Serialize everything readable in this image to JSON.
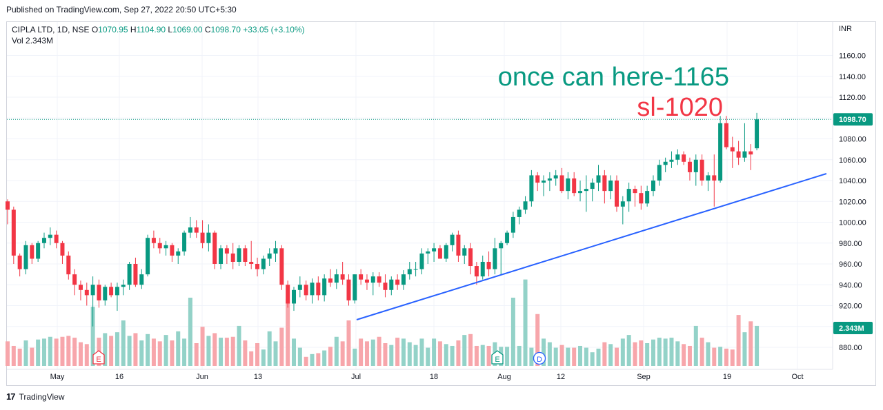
{
  "header": {
    "published": "Published on TradingView.com, Sep 27, 2022 20:50 UTC+5:30"
  },
  "legend": {
    "symbol": "CIPLA LTD, 1D, NSE",
    "open_label": "O",
    "open": "1070.95",
    "high_label": "H",
    "high": "1104.90",
    "low_label": "L",
    "low": "1069.00",
    "close_label": "C",
    "close": "1098.70",
    "change": "+33.05 (+3.10%)",
    "vol_label": "Vol",
    "vol_value": "2.343M"
  },
  "footer": {
    "brand": "TradingView"
  },
  "colors": {
    "up": "#089981",
    "down": "#f23645",
    "vol_up": "#93d2c8",
    "vol_down": "#f7a6ab",
    "trendline": "#2962ff",
    "annotation_green": "#089981",
    "annotation_red": "#f23645"
  },
  "chart_data": {
    "type": "candlestick",
    "currency": "INR",
    "ylim": [
      870,
      1175
    ],
    "y_ticks": [
      "880.00",
      "900.00",
      "920.00",
      "940.00",
      "960.00",
      "980.00",
      "1000.00",
      "1020.00",
      "1040.00",
      "1060.00",
      "1080.00",
      "1100.00",
      "1120.00",
      "1140.00",
      "1160.00"
    ],
    "x_ticks": [
      "May",
      "16",
      "Jun",
      "13",
      "Jul",
      "18",
      "Aug",
      "12",
      "Sep",
      "19",
      "Oct"
    ],
    "last_price_label": "1098.70",
    "last_volume_label": "2.343M",
    "annotations": [
      "once can here-1165",
      "sl-1020"
    ],
    "event_markers": [
      "E",
      "E",
      "D"
    ],
    "candles": [
      [
        1020,
        1022,
        998,
        1012
      ],
      [
        1012,
        1015,
        960,
        968
      ],
      [
        968,
        970,
        948,
        955
      ],
      [
        955,
        982,
        950,
        978
      ],
      [
        978,
        980,
        960,
        965
      ],
      [
        965,
        982,
        962,
        980
      ],
      [
        980,
        990,
        975,
        985
      ],
      [
        985,
        995,
        978,
        988
      ],
      [
        988,
        992,
        975,
        980
      ],
      [
        980,
        982,
        960,
        968
      ],
      [
        968,
        972,
        945,
        950
      ],
      [
        950,
        955,
        930,
        940
      ],
      [
        940,
        944,
        925,
        935
      ],
      [
        935,
        942,
        920,
        930
      ],
      [
        930,
        948,
        900,
        940
      ],
      [
        940,
        945,
        918,
        925
      ],
      [
        925,
        940,
        920,
        938
      ],
      [
        938,
        942,
        928,
        930
      ],
      [
        930,
        942,
        915,
        938
      ],
      [
        938,
        945,
        930,
        940
      ],
      [
        940,
        962,
        935,
        960
      ],
      [
        960,
        966,
        938,
        940
      ],
      [
        940,
        955,
        936,
        950
      ],
      [
        950,
        988,
        948,
        985
      ],
      [
        985,
        992,
        975,
        980
      ],
      [
        980,
        985,
        970,
        975
      ],
      [
        975,
        982,
        968,
        978
      ],
      [
        978,
        980,
        962,
        968
      ],
      [
        968,
        975,
        960,
        972
      ],
      [
        972,
        992,
        968,
        990
      ],
      [
        990,
        1005,
        985,
        995
      ],
      [
        995,
        1002,
        985,
        990
      ],
      [
        990,
        1002,
        975,
        980
      ],
      [
        980,
        998,
        972,
        990
      ],
      [
        990,
        992,
        955,
        960
      ],
      [
        960,
        978,
        955,
        975
      ],
      [
        975,
        978,
        960,
        970
      ],
      [
        970,
        980,
        955,
        962
      ],
      [
        962,
        978,
        958,
        975
      ],
      [
        975,
        978,
        958,
        962
      ],
      [
        962,
        982,
        955,
        960
      ],
      [
        960,
        966,
        948,
        955
      ],
      [
        955,
        968,
        950,
        965
      ],
      [
        965,
        975,
        958,
        970
      ],
      [
        970,
        982,
        962,
        975
      ],
      [
        975,
        978,
        935,
        940
      ],
      [
        940,
        944,
        918,
        922
      ],
      [
        922,
        938,
        915,
        935
      ],
      [
        935,
        948,
        928,
        940
      ],
      [
        940,
        944,
        925,
        930
      ],
      [
        930,
        946,
        922,
        942
      ],
      [
        942,
        948,
        925,
        930
      ],
      [
        930,
        950,
        924,
        946
      ],
      [
        946,
        955,
        938,
        942
      ],
      [
        942,
        955,
        936,
        950
      ],
      [
        950,
        962,
        940,
        945
      ],
      [
        945,
        950,
        920,
        925
      ],
      [
        925,
        950,
        922,
        950
      ],
      [
        950,
        955,
        940,
        945
      ],
      [
        945,
        950,
        935,
        942
      ],
      [
        942,
        952,
        930,
        948
      ],
      [
        948,
        952,
        938,
        942
      ],
      [
        942,
        950,
        928,
        935
      ],
      [
        935,
        948,
        930,
        945
      ],
      [
        945,
        950,
        935,
        940
      ],
      [
        940,
        954,
        935,
        950
      ],
      [
        950,
        962,
        945,
        955
      ],
      [
        955,
        962,
        948,
        955
      ],
      [
        955,
        975,
        950,
        970
      ],
      [
        970,
        975,
        960,
        972
      ],
      [
        972,
        980,
        962,
        975
      ],
      [
        975,
        978,
        965,
        965
      ],
      [
        965,
        980,
        962,
        978
      ],
      [
        978,
        990,
        972,
        988
      ],
      [
        988,
        992,
        962,
        968
      ],
      [
        968,
        978,
        960,
        975
      ],
      [
        975,
        980,
        950,
        958
      ],
      [
        958,
        962,
        940,
        948
      ],
      [
        948,
        968,
        945,
        962
      ],
      [
        962,
        972,
        948,
        955
      ],
      [
        955,
        985,
        950,
        975
      ],
      [
        975,
        982,
        950,
        980
      ],
      [
        980,
        992,
        978,
        990
      ],
      [
        990,
        1010,
        985,
        1005
      ],
      [
        1005,
        1015,
        998,
        1012
      ],
      [
        1012,
        1025,
        1008,
        1020
      ],
      [
        1020,
        1050,
        1015,
        1045
      ],
      [
        1045,
        1048,
        1030,
        1038
      ],
      [
        1038,
        1045,
        1025,
        1040
      ],
      [
        1040,
        1048,
        1030,
        1042
      ],
      [
        1042,
        1050,
        1035,
        1045
      ],
      [
        1045,
        1052,
        1028,
        1030
      ],
      [
        1030,
        1048,
        1022,
        1042
      ],
      [
        1042,
        1048,
        1025,
        1028
      ],
      [
        1028,
        1040,
        1020,
        1030
      ],
      [
        1030,
        1045,
        1010,
        1032
      ],
      [
        1032,
        1042,
        1020,
        1038
      ],
      [
        1038,
        1055,
        1030,
        1045
      ],
      [
        1045,
        1050,
        1018,
        1030
      ],
      [
        1030,
        1045,
        1022,
        1040
      ],
      [
        1040,
        1045,
        1010,
        1015
      ],
      [
        1015,
        1025,
        998,
        1020
      ],
      [
        1020,
        1038,
        1010,
        1032
      ],
      [
        1032,
        1035,
        1015,
        1028
      ],
      [
        1028,
        1035,
        1012,
        1018
      ],
      [
        1018,
        1035,
        1015,
        1030
      ],
      [
        1030,
        1045,
        1025,
        1040
      ],
      [
        1040,
        1060,
        1035,
        1055
      ],
      [
        1055,
        1062,
        1048,
        1058
      ],
      [
        1058,
        1068,
        1052,
        1060
      ],
      [
        1060,
        1070,
        1055,
        1065
      ],
      [
        1065,
        1068,
        1055,
        1058
      ],
      [
        1058,
        1062,
        1040,
        1048
      ],
      [
        1048,
        1065,
        1035,
        1060
      ],
      [
        1060,
        1065,
        1035,
        1040
      ],
      [
        1040,
        1048,
        1030,
        1045
      ],
      [
        1045,
        1065,
        1015,
        1040
      ],
      [
        1040,
        1102,
        1038,
        1095
      ],
      [
        1095,
        1102,
        1070,
        1072
      ],
      [
        1072,
        1082,
        1052,
        1068
      ],
      [
        1068,
        1078,
        1055,
        1062
      ],
      [
        1062,
        1095,
        1058,
        1068
      ],
      [
        1068,
        1075,
        1050,
        1065
      ],
      [
        1070.95,
        1104.9,
        1069,
        1098.7
      ]
    ],
    "volume_levels": [
      0.27,
      0.22,
      0.19,
      0.28,
      0.2,
      0.29,
      0.3,
      0.32,
      0.3,
      0.32,
      0.33,
      0.31,
      0.26,
      0.24,
      0.65,
      0.31,
      0.36,
      0.33,
      0.37,
      0.5,
      0.33,
      0.36,
      0.28,
      0.35,
      0.3,
      0.27,
      0.34,
      0.28,
      0.38,
      0.3,
      0.75,
      0.25,
      0.43,
      0.33,
      0.36,
      0.31,
      0.31,
      0.32,
      0.44,
      0.28,
      0.16,
      0.25,
      0.18,
      0.38,
      0.27,
      0.42,
      0.73,
      0.3,
      0.2,
      0.1,
      0.13,
      0.14,
      0.17,
      0.21,
      0.32,
      0.27,
      0.5,
      0.19,
      0.3,
      0.27,
      0.29,
      0.32,
      0.25,
      0.23,
      0.31,
      0.3,
      0.26,
      0.23,
      0.3,
      0.2,
      0.3,
      0.27,
      0.24,
      0.22,
      0.28,
      0.34,
      0.35,
      0.22,
      0.23,
      0.22,
      0.26,
      0.21,
      0.21,
      0.75,
      0.22,
      0.95,
      0.2,
      0.57,
      0.3,
      0.26,
      0.2,
      0.23,
      0.2,
      0.2,
      0.22,
      0.2,
      0.15,
      0.19,
      0.26,
      0.24,
      0.2,
      0.3,
      0.34,
      0.26,
      0.28,
      0.25,
      0.29,
      0.31,
      0.3,
      0.31,
      0.27,
      0.24,
      0.22,
      0.44,
      0.31,
      0.26,
      0.2,
      0.21,
      0.19,
      0.18,
      0.56,
      0.37,
      0.49,
      0.44,
      0.28,
      0.62,
      0.24,
      0.4
    ]
  }
}
